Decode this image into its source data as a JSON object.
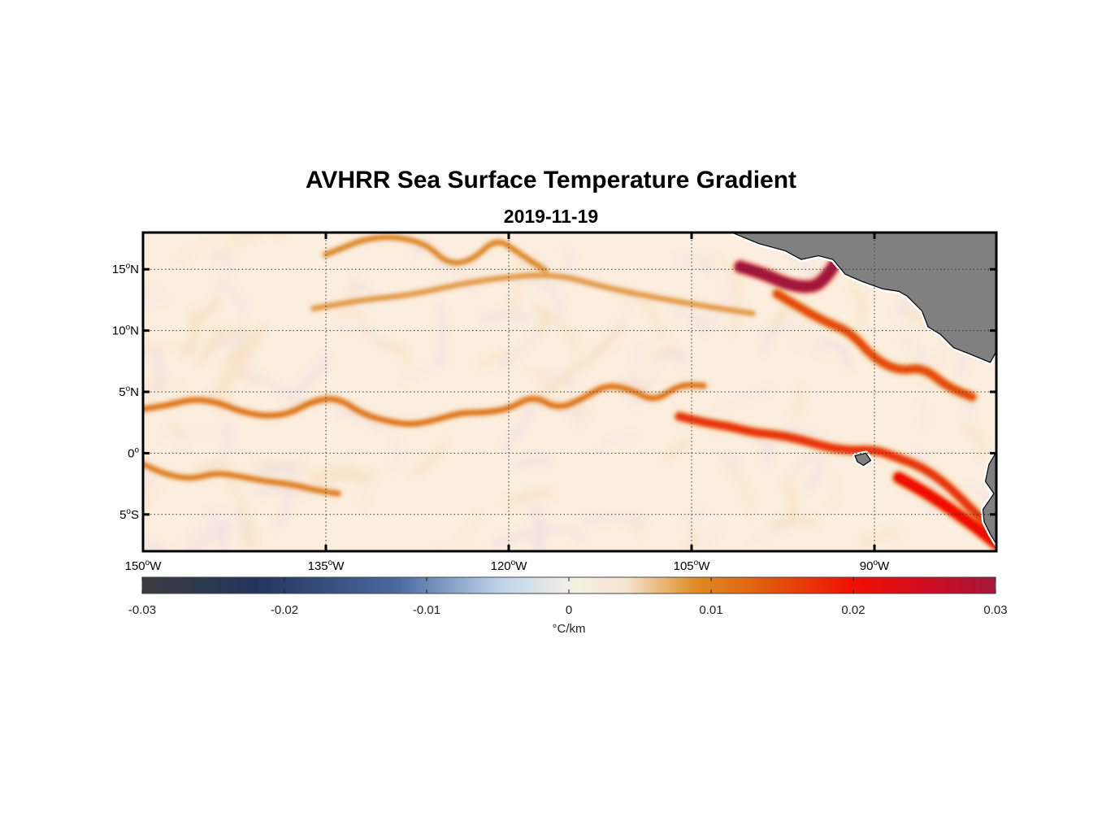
{
  "title": "AVHRR Sea Surface Temperature Gradient",
  "subtitle": "2019-11-19",
  "map": {
    "lon_range": [
      -150,
      -80
    ],
    "lat_range": [
      -8,
      18
    ],
    "lon_ticks": [
      {
        "lon": -150,
        "deg": "150",
        "dir": "W"
      },
      {
        "lon": -135,
        "deg": "135",
        "dir": "W"
      },
      {
        "lon": -120,
        "deg": "120",
        "dir": "W"
      },
      {
        "lon": -105,
        "deg": "105",
        "dir": "W"
      },
      {
        "lon": -90,
        "deg": "90",
        "dir": "W"
      }
    ],
    "lat_ticks": [
      {
        "lat": 15,
        "deg": "15",
        "dir": "N"
      },
      {
        "lat": 10,
        "deg": "10",
        "dir": "N"
      },
      {
        "lat": 5,
        "deg": "5",
        "dir": "N"
      },
      {
        "lat": 0,
        "deg": "0",
        "dir": ""
      },
      {
        "lat": -5,
        "deg": "5",
        "dir": "S"
      }
    ],
    "degree_symbol": "o",
    "grid": true,
    "land_color": "#808080",
    "ocean_background": "#fbeede",
    "front_color": "#e06a10",
    "strong_front_color": "#e8160c",
    "max_front_color": "#a8162e",
    "fronts": [
      {
        "label": "Equatorial front 5N",
        "intensity": 0.011,
        "pts": [
          [
            -150,
            3.6
          ],
          [
            -148,
            3.9
          ],
          [
            -146,
            4.4
          ],
          [
            -144,
            4.2
          ],
          [
            -142,
            3.4
          ],
          [
            -140,
            3.0
          ],
          [
            -138,
            3.2
          ],
          [
            -136,
            4.3
          ],
          [
            -134,
            4.5
          ],
          [
            -132,
            3.2
          ],
          [
            -130,
            2.6
          ],
          [
            -128,
            2.3
          ],
          [
            -126,
            2.7
          ],
          [
            -124,
            3.3
          ],
          [
            -122,
            3.3
          ],
          [
            -120,
            3.6
          ],
          [
            -118,
            4.7
          ],
          [
            -116,
            3.6
          ],
          [
            -114,
            4.4
          ],
          [
            -112,
            5.6
          ],
          [
            -110,
            5.2
          ],
          [
            -108,
            4.2
          ],
          [
            -106,
            5.6
          ],
          [
            -104,
            5.5
          ]
        ]
      },
      {
        "label": "Equatorial front 2N",
        "intensity": 0.017,
        "pts": [
          [
            -106,
            3.0
          ],
          [
            -104,
            2.5
          ],
          [
            -102,
            2.2
          ],
          [
            -100,
            1.7
          ],
          [
            -98,
            1.5
          ],
          [
            -96,
            1.1
          ],
          [
            -94,
            0.5
          ],
          [
            -92,
            0.2
          ],
          [
            -90,
            0.3
          ],
          [
            -88,
            -0.4
          ],
          [
            -86,
            -1.2
          ],
          [
            -84,
            -2.6
          ],
          [
            -82,
            -4.6
          ],
          [
            -80,
            -6.5
          ]
        ]
      },
      {
        "label": "Southern front",
        "intensity": 0.01,
        "pts": [
          [
            -150,
            -0.9
          ],
          [
            -148,
            -1.8
          ],
          [
            -146,
            -2.1
          ],
          [
            -144,
            -1.6
          ],
          [
            -142,
            -1.9
          ],
          [
            -140,
            -2.3
          ],
          [
            -138,
            -2.5
          ],
          [
            -136,
            -3.0
          ],
          [
            -134,
            -3.3
          ]
        ]
      },
      {
        "label": "Northern front",
        "intensity": 0.009,
        "pts": [
          [
            -135,
            16.2
          ],
          [
            -131,
            17.8
          ],
          [
            -127,
            17.3
          ],
          [
            -125,
            15.4
          ],
          [
            -123,
            15.7
          ],
          [
            -121,
            17.6
          ],
          [
            -119,
            16.2
          ],
          [
            -117,
            14.9
          ]
        ]
      },
      {
        "label": "Sub-tropical front",
        "intensity": 0.008,
        "pts": [
          [
            -136,
            11.8
          ],
          [
            -132,
            12.5
          ],
          [
            -128,
            12.9
          ],
          [
            -124,
            13.8
          ],
          [
            -120,
            14.4
          ],
          [
            -116,
            14.6
          ],
          [
            -112,
            13.5
          ],
          [
            -108,
            12.7
          ],
          [
            -104,
            12.0
          ],
          [
            -100,
            11.4
          ]
        ]
      },
      {
        "label": "Tehuantepec plume",
        "intensity": 0.03,
        "pts": [
          [
            -101,
            15.2
          ],
          [
            -99,
            14.6
          ],
          [
            -97,
            13.7
          ],
          [
            -95,
            13.5
          ],
          [
            -94,
            14.3
          ],
          [
            -93,
            15.8
          ]
        ]
      },
      {
        "label": "Off Central America",
        "intensity": 0.015,
        "pts": [
          [
            -98,
            13.0
          ],
          [
            -96,
            11.8
          ],
          [
            -94,
            10.7
          ],
          [
            -92,
            9.9
          ],
          [
            -90,
            7.7
          ],
          [
            -88,
            6.7
          ],
          [
            -86,
            7.0
          ],
          [
            -84,
            5.4
          ],
          [
            -82,
            4.6
          ]
        ]
      },
      {
        "label": "Peru coast",
        "intensity": 0.02,
        "pts": [
          [
            -88,
            -2.0
          ],
          [
            -86,
            -3.1
          ],
          [
            -84,
            -4.4
          ],
          [
            -82,
            -5.8
          ],
          [
            -80,
            -7.4
          ]
        ]
      }
    ],
    "land_polygons": [
      {
        "name": "Central America",
        "pts": [
          [
            -101.7,
            18
          ],
          [
            -99.5,
            17.1
          ],
          [
            -97.3,
            16.5
          ],
          [
            -96,
            15.8
          ],
          [
            -94.6,
            16.1
          ],
          [
            -93.4,
            15.8
          ],
          [
            -92.4,
            14.6
          ],
          [
            -91,
            14
          ],
          [
            -89.3,
            13.4
          ],
          [
            -88,
            13.2
          ],
          [
            -87.3,
            12.8
          ],
          [
            -86.1,
            11.6
          ],
          [
            -85.6,
            10.3
          ],
          [
            -84.6,
            9.7
          ],
          [
            -83.5,
            8.6
          ],
          [
            -82.2,
            8.1
          ],
          [
            -80.5,
            7.4
          ],
          [
            -80,
            8.3
          ],
          [
            -80,
            18
          ]
        ]
      },
      {
        "name": "South America",
        "pts": [
          [
            -80,
            0.1
          ],
          [
            -80.6,
            -0.9
          ],
          [
            -80.9,
            -2.3
          ],
          [
            -80.2,
            -3.3
          ],
          [
            -81.1,
            -4.6
          ],
          [
            -81,
            -5.6
          ],
          [
            -80.5,
            -6.6
          ],
          [
            -80,
            -7.4
          ]
        ]
      },
      {
        "name": "Galapagos",
        "pts": [
          [
            -91.6,
            -0.2
          ],
          [
            -90.7,
            0.0
          ],
          [
            -90.3,
            -0.6
          ],
          [
            -90.9,
            -1.0
          ],
          [
            -91.4,
            -0.7
          ]
        ]
      }
    ]
  },
  "colorbar": {
    "min": -0.03,
    "max": 0.03,
    "ticks": [
      {
        "value": -0.03,
        "label": "-0.03"
      },
      {
        "value": -0.02,
        "label": "-0.02"
      },
      {
        "value": -0.01,
        "label": "-0.01"
      },
      {
        "value": 0,
        "label": "0"
      },
      {
        "value": 0.01,
        "label": "0.01"
      },
      {
        "value": 0.02,
        "label": "0.02"
      },
      {
        "value": 0.03,
        "label": "0.03"
      }
    ],
    "unit_label": "°C/km",
    "stops": [
      {
        "value": -0.03,
        "color": "#3c3c40"
      },
      {
        "value": -0.022,
        "color": "#23345c"
      },
      {
        "value": -0.012,
        "color": "#4a6aa0"
      },
      {
        "value": -0.005,
        "color": "#bcd2ea"
      },
      {
        "value": 0,
        "color": "#f3efe6"
      },
      {
        "value": 0.004,
        "color": "#f5e6d2"
      },
      {
        "value": 0.009,
        "color": "#de8a20"
      },
      {
        "value": 0.013,
        "color": "#e06410"
      },
      {
        "value": 0.02,
        "color": "#f01000"
      },
      {
        "value": 0.025,
        "color": "#d00c20"
      },
      {
        "value": 0.03,
        "color": "#a3163a"
      }
    ]
  }
}
